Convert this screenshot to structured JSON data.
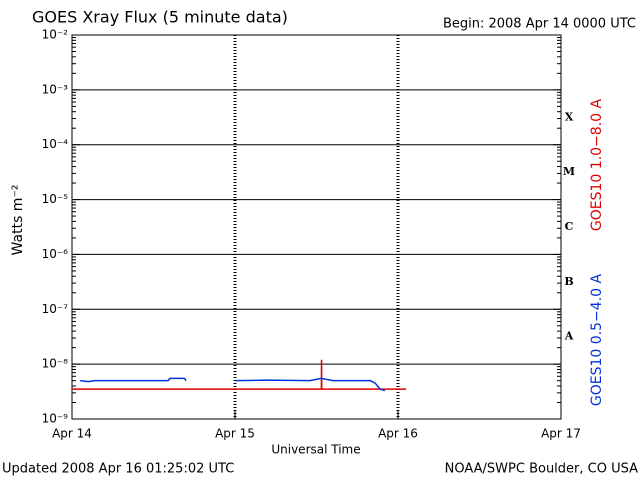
{
  "chart_data": {
    "type": "line",
    "title": "GOES Xray Flux (5 minute data)",
    "subtitle": "Begin:  2008 Apr 14 0000 UTC",
    "x_label": "Universal Time",
    "y_label": "Watts m⁻²",
    "footer_left": "Updated 2008 Apr 16 01:25:02 UTC",
    "footer_right": "NOAA/SWPC Boulder, CO USA",
    "log_y": true,
    "grid": true,
    "xlim": [
      0,
      3
    ],
    "xticks": [
      {
        "value": 0,
        "label": "Apr 14"
      },
      {
        "value": 1,
        "label": "Apr 15"
      },
      {
        "value": 2,
        "label": "Apr 16"
      },
      {
        "value": 3,
        "label": "Apr 17"
      }
    ],
    "ylim": [
      1e-09,
      0.01
    ],
    "yticks": [
      {
        "value": 1e-09,
        "label": "10⁻⁹"
      },
      {
        "value": 1e-08,
        "label": "10⁻⁸"
      },
      {
        "value": 1e-07,
        "label": "10⁻⁷"
      },
      {
        "value": 1e-06,
        "label": "10⁻⁶"
      },
      {
        "value": 1e-05,
        "label": "10⁻⁵"
      },
      {
        "value": 0.0001,
        "label": "10⁻⁴"
      },
      {
        "value": 0.001,
        "label": "10⁻³"
      },
      {
        "value": 0.01,
        "label": "10⁻²"
      }
    ],
    "flare_classes": [
      {
        "label": "X",
        "value": 0.0001
      },
      {
        "label": "M",
        "value": 1e-05
      },
      {
        "label": "C",
        "value": 1e-06
      },
      {
        "label": "B",
        "value": 1e-07
      },
      {
        "label": "A",
        "value": 1e-08
      }
    ],
    "series": [
      {
        "name": "GOES10 1.0−8.0 A",
        "color": "#e00000",
        "x": [
          0,
          1.53,
          1.531,
          1.532,
          2.05
        ],
        "values": [
          3.5e-09,
          3.5e-09,
          1.2e-08,
          3.5e-09,
          3.5e-09
        ]
      },
      {
        "name": "GOES10 0.5−4.0 A",
        "color": "#0033dd",
        "x": [
          0.05,
          0.1,
          0.14,
          0.59,
          0.6,
          0.69,
          0.7,
          0.85,
          1.0,
          1.2,
          1.46,
          1.53,
          1.6,
          1.83,
          1.86,
          1.89,
          1.92
        ],
        "values": [
          5e-09,
          4.8e-09,
          5e-09,
          5e-09,
          5.5e-09,
          5.5e-09,
          5e-09,
          null,
          5e-09,
          5.1e-09,
          5e-09,
          5.5e-09,
          5e-09,
          5e-09,
          4.5e-09,
          3.5e-09,
          3.3e-09
        ]
      }
    ]
  }
}
